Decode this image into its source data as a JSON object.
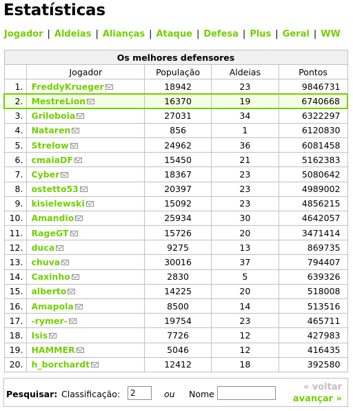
{
  "page_title": "Estatísticas",
  "tabs": [
    "Jogador",
    "Aldeias",
    "Alianças",
    "Ataque",
    "Defesa",
    "Plus",
    "Geral",
    "WW"
  ],
  "colors": {
    "accent": "#71d000",
    "border": "#c0c0c0",
    "highlight_bg": "#f4ffe6"
  },
  "table": {
    "caption": "Os melhores defensores",
    "headers": {
      "player": "Jogador",
      "population": "População",
      "villages": "Aldeias",
      "points": "Pontos"
    },
    "highlight_rank": "2.",
    "message_icon": "envelope-icon",
    "rows": [
      {
        "rank": "1.",
        "player": "FreddyKrueger",
        "population": "18942",
        "villages": "23",
        "points": "9846731"
      },
      {
        "rank": "2.",
        "player": "MestreLion",
        "population": "16370",
        "villages": "19",
        "points": "6740668"
      },
      {
        "rank": "3.",
        "player": "Griloboia",
        "population": "27031",
        "villages": "34",
        "points": "6322297"
      },
      {
        "rank": "4.",
        "player": "Nataren",
        "population": "856",
        "villages": "1",
        "points": "6120830"
      },
      {
        "rank": "5.",
        "player": "Strelow",
        "population": "24962",
        "villages": "36",
        "points": "6081458"
      },
      {
        "rank": "6.",
        "player": "cmaiaDF",
        "population": "15450",
        "villages": "21",
        "points": "5162383"
      },
      {
        "rank": "7.",
        "player": "Cyber",
        "population": "18367",
        "villages": "23",
        "points": "5080642"
      },
      {
        "rank": "8.",
        "player": "ostetto53",
        "population": "20397",
        "villages": "23",
        "points": "4989002"
      },
      {
        "rank": "9.",
        "player": "kisielewski",
        "population": "15092",
        "villages": "23",
        "points": "4856215"
      },
      {
        "rank": "10.",
        "player": "Amandio",
        "population": "25934",
        "villages": "30",
        "points": "4642057"
      },
      {
        "rank": "11.",
        "player": "RageGT",
        "population": "15726",
        "villages": "20",
        "points": "3471414"
      },
      {
        "rank": "12.",
        "player": "duca",
        "population": "9275",
        "villages": "13",
        "points": "869735"
      },
      {
        "rank": "13.",
        "player": "chuva",
        "population": "30016",
        "villages": "37",
        "points": "794407"
      },
      {
        "rank": "14.",
        "player": "Caxinho",
        "population": "2830",
        "villages": "5",
        "points": "639326"
      },
      {
        "rank": "15.",
        "player": "alberto",
        "population": "14225",
        "villages": "20",
        "points": "518008"
      },
      {
        "rank": "16.",
        "player": "Amapola",
        "population": "8500",
        "villages": "14",
        "points": "513516"
      },
      {
        "rank": "17.",
        "player": "-rymer-",
        "population": "19754",
        "villages": "23",
        "points": "465711"
      },
      {
        "rank": "18.",
        "player": "Isis",
        "population": "7726",
        "villages": "12",
        "points": "427983"
      },
      {
        "rank": "19.",
        "player": "HAMMER",
        "population": "5046",
        "villages": "12",
        "points": "416435"
      },
      {
        "rank": "20.",
        "player": "h_borchardt",
        "population": "12412",
        "villages": "18",
        "points": "392580"
      }
    ]
  },
  "search": {
    "label": "Pesquisar:",
    "rank_label": "Classificação:",
    "rank_value": "2",
    "or_label": "ou",
    "name_label": "Nome",
    "name_value": "",
    "back_label": "« voltar",
    "next_label": "avançar »"
  }
}
